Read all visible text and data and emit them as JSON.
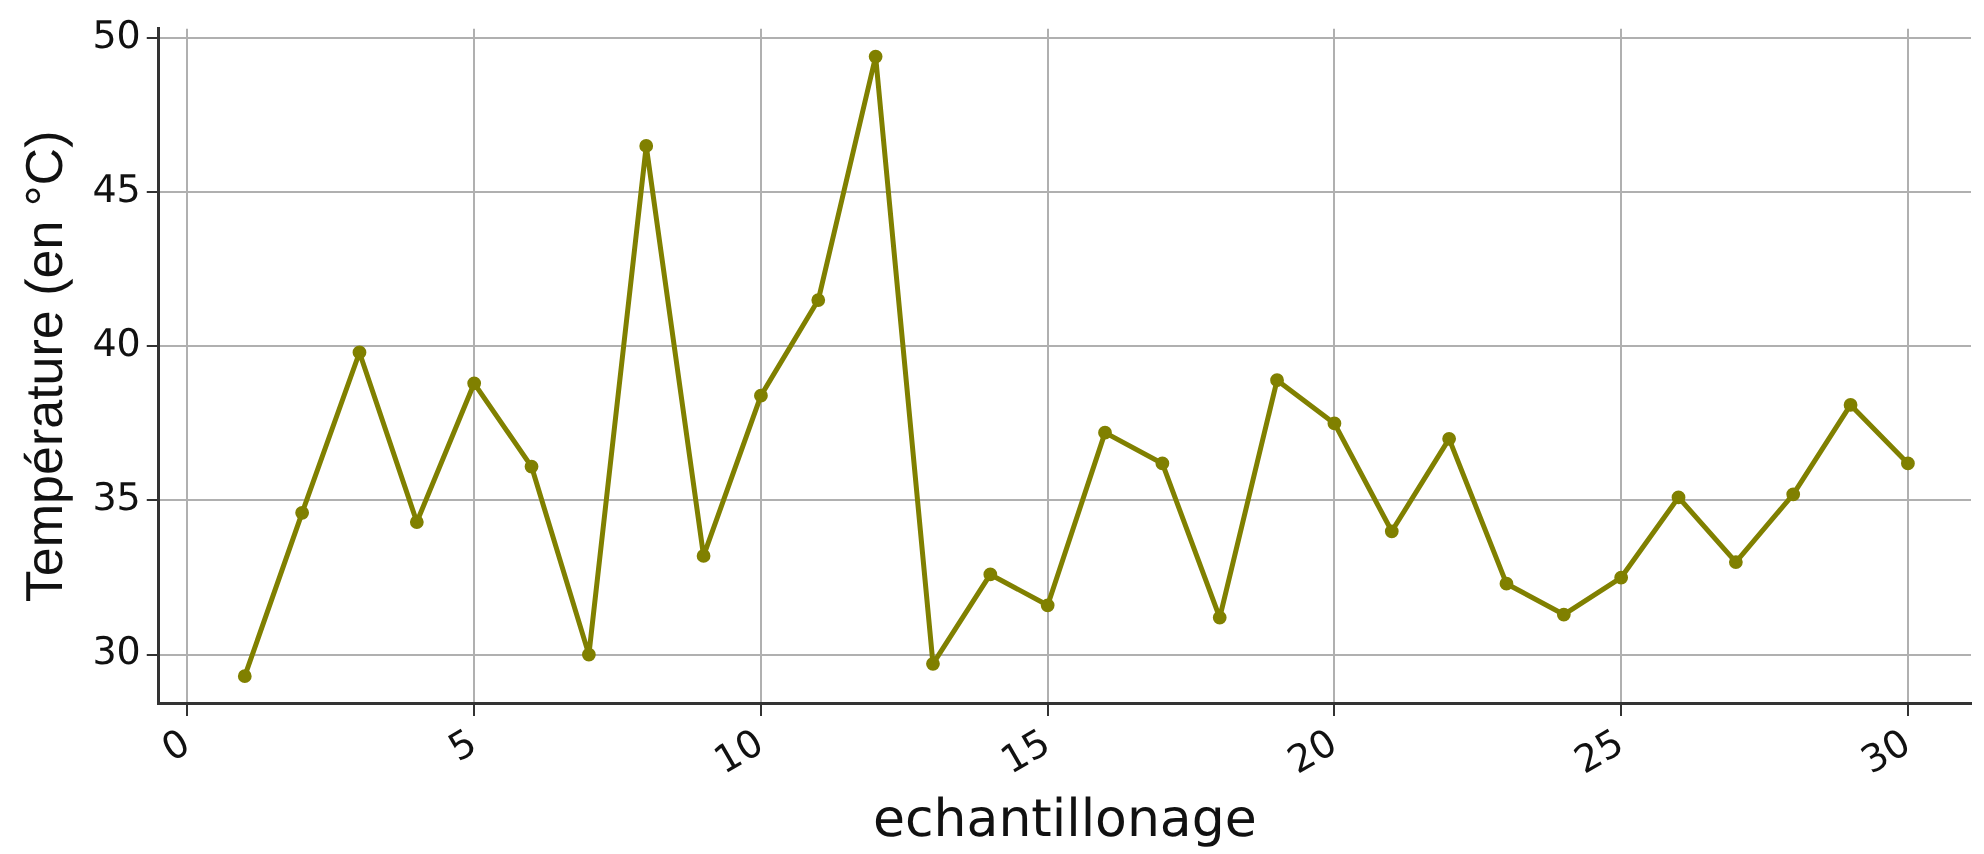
{
  "chart_data": {
    "type": "line",
    "xlabel": "echantillonage",
    "ylabel": "Température (en °C)",
    "x": [
      1,
      2,
      3,
      4,
      5,
      6,
      7,
      8,
      9,
      10,
      11,
      12,
      13,
      14,
      15,
      16,
      17,
      18,
      19,
      20,
      21,
      22,
      23,
      24,
      25,
      26,
      27,
      28,
      29,
      30
    ],
    "series": [
      {
        "color": "#808000",
        "values": [
          29.3,
          34.6,
          39.8,
          34.3,
          38.8,
          36.1,
          30.0,
          46.5,
          33.2,
          38.4,
          41.5,
          49.4,
          29.7,
          32.6,
          31.6,
          37.2,
          36.2,
          31.2,
          38.9,
          37.5,
          34.0,
          37.0,
          32.3,
          31.3,
          32.5,
          35.1,
          33.0,
          35.2,
          38.1,
          36.2
        ]
      }
    ],
    "xlim": [
      -0.5,
      31.1
    ],
    "ylim": [
      28.4,
      50.3
    ],
    "xticks": [
      0,
      5,
      10,
      15,
      20,
      25,
      30
    ],
    "yticks": [
      30,
      35,
      40,
      45,
      50
    ],
    "grid": true,
    "legend": false,
    "marker": "circle",
    "line_style": "solid"
  }
}
